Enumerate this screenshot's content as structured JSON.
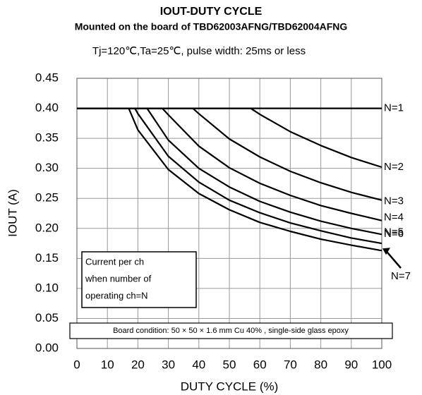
{
  "chart_data": {
    "type": "line",
    "title": "IOUT-DUTY CYCLE",
    "subtitle": "Mounted on the board of TBD62003AFNG/TBD62004AFNG",
    "condition": "Tj=120℃,Ta=25℃, pulse width: 25ms or less",
    "x_label": "DUTY CYCLE (%)",
    "y_label": "IOUT (A)",
    "xlim": [
      0,
      100
    ],
    "xticks": [
      0,
      10,
      20,
      30,
      40,
      50,
      60,
      70,
      80,
      90,
      100
    ],
    "ylim": [
      0,
      0.45
    ],
    "yticks": [
      {
        "value": 0,
        "label": "0.00"
      },
      {
        "value": 0.05,
        "label": "0.05"
      },
      {
        "value": 0.1,
        "label": "0.10"
      },
      {
        "value": 0.15,
        "label": "0.15"
      },
      {
        "value": 0.2,
        "label": "0.20"
      },
      {
        "value": 0.25,
        "label": "0.25"
      },
      {
        "value": 0.3,
        "label": "0.30"
      },
      {
        "value": 0.35,
        "label": "0.35"
      },
      {
        "value": 0.4,
        "label": "0.40"
      },
      {
        "value": 0.45,
        "label": "0.45"
      }
    ],
    "grid": true,
    "series": [
      {
        "name": "N=1",
        "color": "#000000",
        "x": [
          0,
          100
        ],
        "values": [
          0.4,
          0.4
        ]
      },
      {
        "name": "N=2",
        "color": "#000000",
        "x": [
          0,
          57,
          60,
          70,
          80,
          90,
          100
        ],
        "values": [
          0.4,
          0.4,
          0.39,
          0.361,
          0.338,
          0.318,
          0.302
        ]
      },
      {
        "name": "N=3",
        "color": "#000000",
        "x": [
          0,
          38,
          40,
          50,
          60,
          70,
          80,
          90,
          100
        ],
        "values": [
          0.4,
          0.4,
          0.391,
          0.349,
          0.319,
          0.295,
          0.276,
          0.26,
          0.247
        ]
      },
      {
        "name": "N=4",
        "color": "#000000",
        "x": [
          0,
          28,
          30,
          40,
          50,
          60,
          70,
          80,
          90,
          100
        ],
        "values": [
          0.4,
          0.4,
          0.389,
          0.337,
          0.301,
          0.275,
          0.255,
          0.238,
          0.225,
          0.213
        ]
      },
      {
        "name": "N=5",
        "color": "#000000",
        "x": [
          0,
          23,
          30,
          40,
          50,
          60,
          70,
          80,
          90,
          100
        ],
        "values": [
          0.4,
          0.4,
          0.347,
          0.3,
          0.269,
          0.245,
          0.227,
          0.212,
          0.2,
          0.19
        ]
      },
      {
        "name": "N=6",
        "color": "#000000",
        "x": [
          0,
          19,
          20,
          30,
          40,
          50,
          60,
          70,
          80,
          90,
          100
        ],
        "values": [
          0.4,
          0.4,
          0.391,
          0.32,
          0.277,
          0.247,
          0.226,
          0.209,
          0.196,
          0.184,
          0.175
        ]
      },
      {
        "name": "N=7",
        "color": "#000000",
        "x": [
          0,
          17,
          20,
          30,
          40,
          50,
          60,
          70,
          80,
          90,
          100
        ],
        "values": [
          0.4,
          0.4,
          0.364,
          0.298,
          0.258,
          0.231,
          0.21,
          0.195,
          0.182,
          0.172,
          0.163
        ]
      }
    ],
    "annotations": [
      "Current per ch",
      "when number of",
      "operating ch=N"
    ],
    "board_condition": "Board condition: 50 × 50 × 1.6 mm Cu 40% , single-side glass epoxy"
  }
}
